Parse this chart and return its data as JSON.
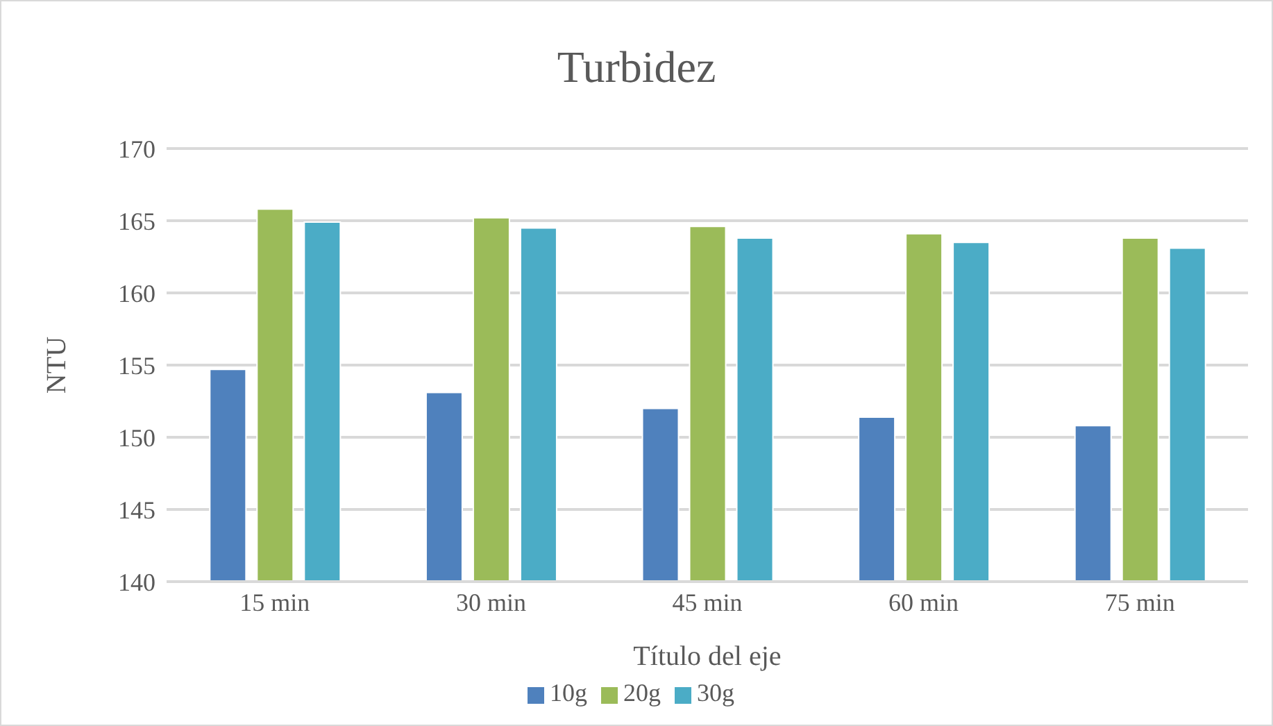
{
  "chart_data": {
    "type": "bar",
    "title": "Turbidez",
    "xlabel": "Título del eje",
    "ylabel": "NTU",
    "categories": [
      "15 min",
      "30 min",
      "45 min",
      "60 min",
      "75 min"
    ],
    "series": [
      {
        "name": "10g",
        "color": "#4f81bd",
        "values": [
          154.7,
          153.1,
          152.0,
          151.4,
          150.8
        ]
      },
      {
        "name": "20g",
        "color": "#9bbb59",
        "values": [
          165.8,
          165.2,
          164.6,
          164.1,
          163.8
        ]
      },
      {
        "name": "30g",
        "color": "#4bacc6",
        "values": [
          164.9,
          164.5,
          163.8,
          163.5,
          163.1
        ]
      }
    ],
    "ylim": [
      140,
      170
    ],
    "yticks": [
      140,
      145,
      150,
      155,
      160,
      165,
      170
    ],
    "grid": "y",
    "legend": "bottom"
  }
}
